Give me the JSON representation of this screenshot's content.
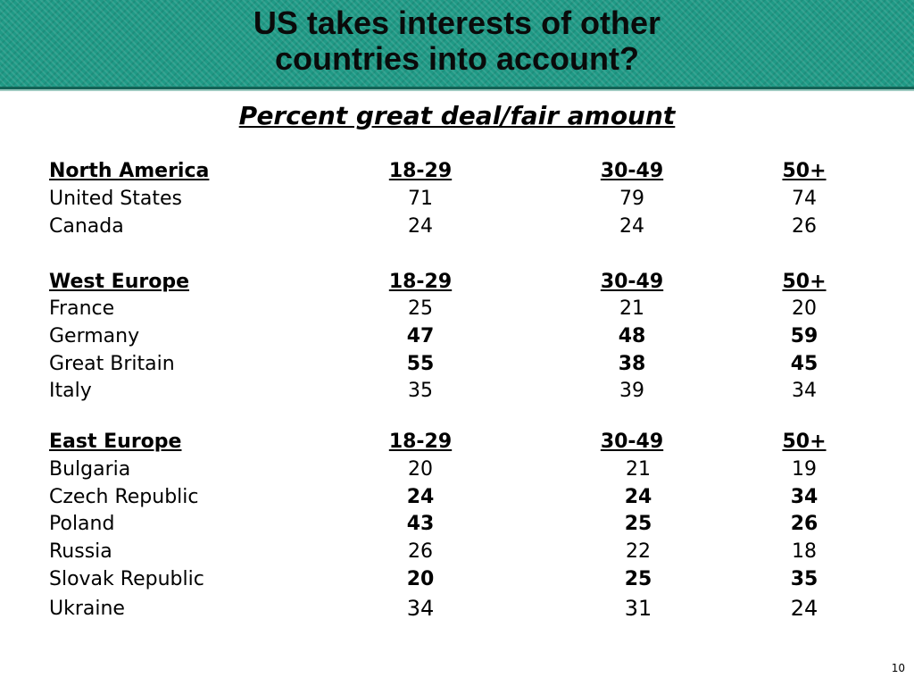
{
  "title_line1": "US takes interests of other",
  "title_line2": "countries into account?",
  "subtitle": "Percent great deal/fair amount",
  "page_number": "10",
  "colors": {
    "banner": "#1f9a86",
    "banner_edge": "#136356"
  },
  "groups": [
    {
      "region": "North America",
      "columns": [
        "18-29",
        "30-49",
        "50+"
      ],
      "rows": [
        {
          "country": "United States",
          "values": [
            "71",
            "79",
            "74"
          ],
          "bold": [
            false,
            false,
            false
          ]
        },
        {
          "country": "Canada",
          "values": [
            "24",
            "24",
            "26"
          ],
          "bold": [
            false,
            false,
            false
          ]
        }
      ]
    },
    {
      "region": "West Europe",
      "columns": [
        "18-29",
        "30-49",
        "50+"
      ],
      "rows": [
        {
          "country": "France",
          "values": [
            "25",
            "21",
            "20"
          ],
          "bold": [
            false,
            false,
            false
          ]
        },
        {
          "country": "Germany",
          "values": [
            "47",
            "48",
            "59"
          ],
          "bold": [
            true,
            true,
            true
          ]
        },
        {
          "country": "Great Britain",
          "values": [
            "55",
            "38",
            "45"
          ],
          "bold": [
            true,
            true,
            true
          ]
        },
        {
          "country": "Italy",
          "values": [
            "35",
            "39",
            "34"
          ],
          "bold": [
            false,
            false,
            false
          ]
        }
      ]
    },
    {
      "region": "East Europe",
      "columns": [
        "18-29",
        "30-49",
        "50+"
      ],
      "rows": [
        {
          "country": "Bulgaria",
          "values": [
            "20",
            "21",
            "19"
          ],
          "bold": [
            false,
            false,
            false
          ]
        },
        {
          "country": "Czech Republic",
          "values": [
            "24",
            "24",
            "34"
          ],
          "bold": [
            true,
            true,
            true
          ]
        },
        {
          "country": "Poland",
          "values": [
            "43",
            "25",
            "26"
          ],
          "bold": [
            true,
            true,
            true
          ]
        },
        {
          "country": "Russia",
          "values": [
            "26",
            "22",
            "18"
          ],
          "bold": [
            false,
            false,
            false
          ]
        },
        {
          "country": "Slovak Republic",
          "values": [
            "20",
            "25",
            "35"
          ],
          "bold": [
            true,
            true,
            true
          ]
        },
        {
          "country": "Ukraine",
          "values": [
            "34",
            "31",
            "24"
          ],
          "bold": [
            false,
            false,
            false
          ]
        }
      ]
    }
  ]
}
